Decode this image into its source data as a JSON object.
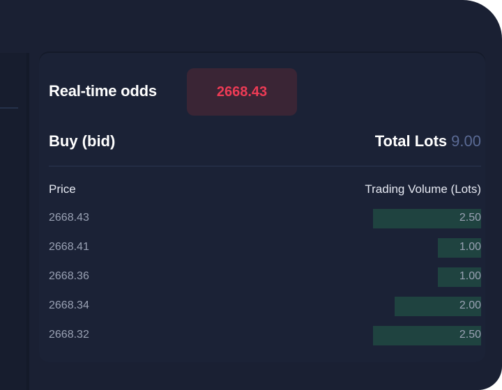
{
  "odds": {
    "label": "Real-time odds",
    "value": "2668.43",
    "value_color": "#ee3b55"
  },
  "buy": {
    "title": "Buy (bid)",
    "total_label": "Total Lots",
    "total_value": "9.00"
  },
  "columns": {
    "price": "Price",
    "volume": "Trading Volume (Lots)"
  },
  "orders": [
    {
      "price": "2668.43",
      "volume": "2.50",
      "depth_fraction": 0.25
    },
    {
      "price": "2668.41",
      "volume": "1.00",
      "depth_fraction": 0.1
    },
    {
      "price": "2668.36",
      "volume": "1.00",
      "depth_fraction": 0.1
    },
    {
      "price": "2668.34",
      "volume": "2.00",
      "depth_fraction": 0.2
    },
    {
      "price": "2668.32",
      "volume": "2.50",
      "depth_fraction": 0.25
    }
  ],
  "colors": {
    "background": "#1a2033",
    "panel": "#1b2236",
    "bid_bar": "#1f4340"
  }
}
